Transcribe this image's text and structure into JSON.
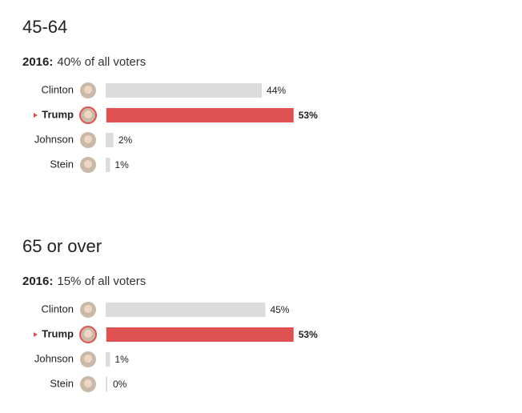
{
  "chart_data": [
    {
      "type": "bar",
      "title": "45-64",
      "subtitle_label": "2016:",
      "subtitle": "40% of all voters",
      "categories": [
        "Clinton",
        "Trump",
        "Johnson",
        "Stein"
      ],
      "values": [
        44,
        53,
        2,
        1
      ],
      "value_labels": [
        "44%",
        "53%",
        "2%",
        "1%"
      ],
      "colors": [
        "#dcdcdc",
        "#e05252",
        "#dcdcdc",
        "#dcdcdc"
      ],
      "winner_index": 1,
      "xlim": [
        0,
        100
      ]
    },
    {
      "type": "bar",
      "title": "65 or over",
      "subtitle_label": "2016:",
      "subtitle": "15% of all voters",
      "categories": [
        "Clinton",
        "Trump",
        "Johnson",
        "Stein"
      ],
      "values": [
        45,
        53,
        1,
        0
      ],
      "value_labels": [
        "45%",
        "53%",
        "1%",
        "0%"
      ],
      "colors": [
        "#dcdcdc",
        "#e05252",
        "#dcdcdc",
        "#dcdcdc"
      ],
      "winner_index": 1,
      "xlim": [
        0,
        100
      ]
    }
  ]
}
